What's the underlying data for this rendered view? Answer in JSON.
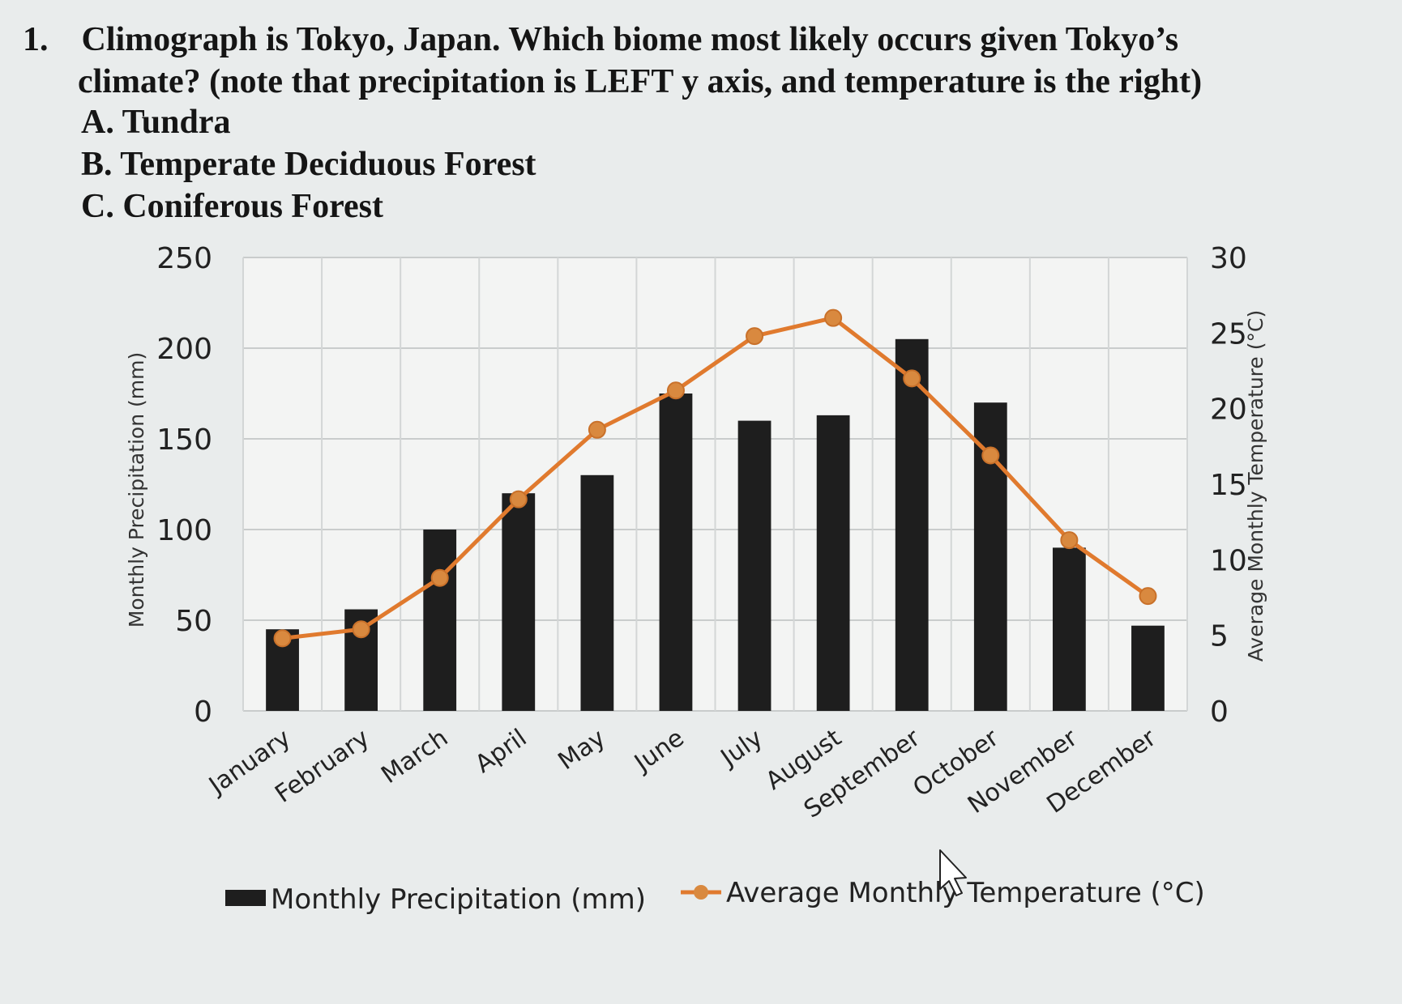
{
  "question": {
    "number": "1.",
    "line1": "Climograph is Tokyo, Japan.  Which biome most likely occurs given Tokyo’s",
    "line2": "climate? (note that precipitation is LEFT y axis, and temperature is the right)",
    "choices": [
      {
        "letter": "A.",
        "text": "Tundra"
      },
      {
        "letter": "B.",
        "text": "Temperate Deciduous Forest"
      },
      {
        "letter": "C.",
        "text": "Coniferous Forest"
      }
    ]
  },
  "chart_data": {
    "type": "bar",
    "title": "",
    "categories": [
      "January",
      "February",
      "March",
      "April",
      "May",
      "June",
      "July",
      "August",
      "September",
      "October",
      "November",
      "December"
    ],
    "series": [
      {
        "name": "Monthly Precipitation  (mm)",
        "type": "bar",
        "axis": "left",
        "color": "#1e1e1e",
        "values": [
          45,
          56,
          100,
          120,
          130,
          175,
          160,
          163,
          205,
          170,
          90,
          47
        ]
      },
      {
        "name": "Average Monthly Temperature (°C)",
        "type": "line",
        "axis": "right",
        "color": "#e07a2e",
        "marker_color": "#d9893f",
        "values": [
          4.8,
          5.4,
          8.8,
          14.0,
          18.6,
          21.2,
          24.8,
          26.0,
          22.0,
          16.9,
          11.3,
          7.6
        ]
      }
    ],
    "left_axis": {
      "label": "Monthly Precipitation  (mm)",
      "range": [
        0,
        250
      ],
      "ticks": [
        "0",
        "50",
        "100",
        "150",
        "200",
        "250"
      ]
    },
    "right_axis": {
      "label": "Average Monthly Temperature (°C)",
      "range": [
        0,
        30
      ],
      "ticks": [
        "0",
        "5",
        "10",
        "15",
        "20",
        "25",
        "30"
      ]
    },
    "grid": true,
    "legend_position": "bottom"
  }
}
